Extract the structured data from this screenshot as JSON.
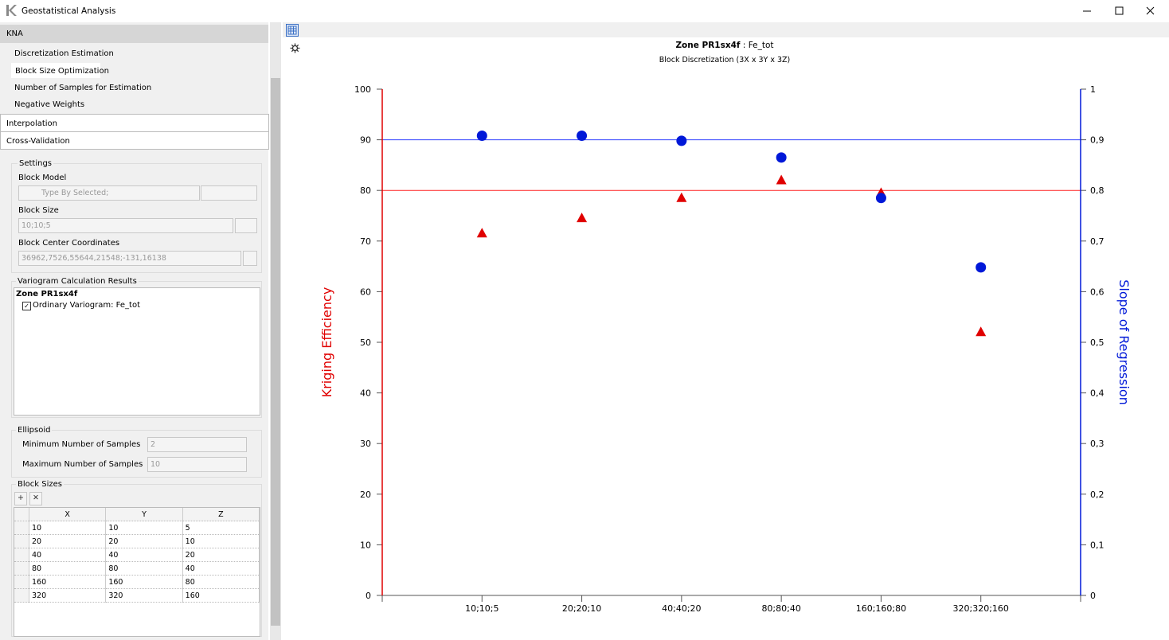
{
  "window": {
    "title": "Geostatistical Analysis"
  },
  "sidebar": {
    "header": "KNA",
    "items": [
      "Discretization Estimation",
      "Block Size Optimization",
      "Number of Samples for Estimation",
      "Negative Weights"
    ],
    "sections": [
      "Interpolation",
      "Cross-Validation"
    ],
    "settings": {
      "title": "Settings",
      "block_model_label": "Block Model",
      "block_model_value": "Type By Selected;",
      "block_size_label": "Block Size",
      "block_size_value": "10;10;5",
      "center_label": "Block Center Coordinates",
      "center_value": "36962,7526,55644,21548;-131,16138"
    },
    "variogram": {
      "title": "Variogram Calculation Results",
      "zone": "Zone PR1sx4f",
      "item": "Ordinary Variogram: Fe_tot"
    },
    "ellipsoid": {
      "title": "Ellipsoid",
      "min_label": "Minimum Number of Samples",
      "min_value": "2",
      "max_label": "Maximum Number of Samples",
      "max_value": "10"
    },
    "block_sizes": {
      "title": "Block Sizes",
      "columns": [
        "X",
        "Y",
        "Z"
      ],
      "rows": [
        [
          10,
          10,
          5
        ],
        [
          20,
          20,
          10
        ],
        [
          40,
          40,
          20
        ],
        [
          80,
          80,
          40
        ],
        [
          160,
          160,
          80
        ],
        [
          320,
          320,
          160
        ]
      ]
    }
  },
  "chart_data": {
    "type": "scatter",
    "title": "Zone PR1sx4f",
    "title_suffix": " : Fe_tot",
    "subtitle": "Block Discretization (3X x 3Y x 3Z)",
    "categories": [
      "10;10;5",
      "20;20;10",
      "40;40;20",
      "80;80;40",
      "160;160;80",
      "320;320;160"
    ],
    "ylabel": "Kriging Efficiency",
    "y2label": "Slope of Regression",
    "ylim": [
      0,
      100
    ],
    "yticks": [
      0,
      10,
      20,
      30,
      40,
      50,
      60,
      70,
      80,
      90,
      100
    ],
    "y2lim": [
      0,
      1
    ],
    "y2ticks": [
      0,
      {
        "value": 0.1,
        "label": "0,1"
      },
      {
        "value": 0.2,
        "label": "0,2"
      },
      {
        "value": 0.3,
        "label": "0,3"
      },
      {
        "value": 0.4,
        "label": "0,4"
      },
      {
        "value": 0.5,
        "label": "0,5"
      },
      {
        "value": 0.6,
        "label": "0,6"
      },
      {
        "value": 0.7,
        "label": "0,7"
      },
      {
        "value": 0.8,
        "label": "0,8"
      },
      {
        "value": 0.9,
        "label": "0,9"
      },
      1
    ],
    "series": [
      {
        "name": "Kriging Efficiency",
        "color": "#e00000",
        "marker": "triangle",
        "values": [
          71.5,
          74.5,
          78.5,
          82,
          79.5,
          52
        ]
      },
      {
        "name": "Slope of Regression",
        "color": "#0018d8",
        "marker": "circle",
        "axis": "y2",
        "values": [
          0.908,
          0.908,
          0.898,
          0.865,
          0.785,
          0.648
        ]
      }
    ],
    "reference_lines": [
      {
        "axis": "y",
        "value": 80,
        "color": "#ff2020"
      },
      {
        "axis": "y2",
        "value": 0.9,
        "color": "#3040ff"
      }
    ]
  }
}
